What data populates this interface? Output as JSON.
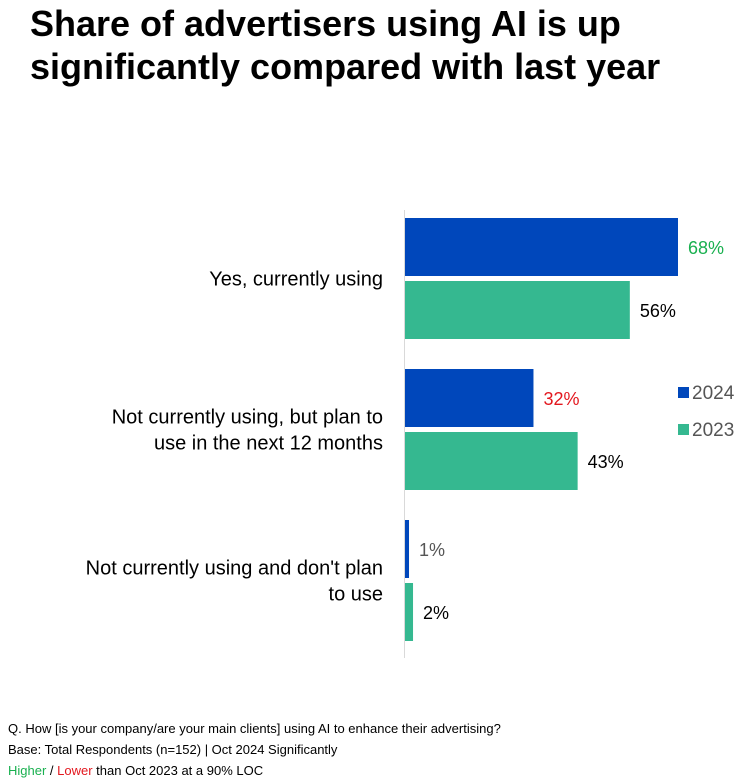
{
  "title_lines": [
    "Share of advertisers using AI is up",
    "significantly compared with last year"
  ],
  "chart_data": {
    "type": "bar",
    "orientation": "horizontal",
    "categories": [
      [
        "Yes, currently using"
      ],
      [
        "Not currently using, but plan to",
        "use in the next 12 months"
      ],
      [
        "Not currently using and don't plan",
        "to use"
      ]
    ],
    "series": [
      {
        "name": "2024",
        "values": [
          68,
          32,
          1
        ],
        "color": "#0047bb",
        "labels": [
          "68%",
          "32%",
          "1%"
        ],
        "label_colors": [
          "#19b04f",
          "#e3171e",
          "#555555"
        ]
      },
      {
        "name": "2023",
        "values": [
          56,
          43,
          2
        ],
        "color": "#35b890",
        "labels": [
          "56%",
          "43%",
          "2%"
        ],
        "label_colors": [
          "#000000",
          "#000000",
          "#000000"
        ]
      }
    ],
    "xlim": [
      0,
      68
    ],
    "grid": false,
    "legend": "right"
  },
  "footnote": {
    "line1": "Q. How [is your company/are your main clients] using AI to enhance their advertising?",
    "line2": "Base: Total Respondents (n=152) | Oct 2024 Significantly",
    "higher": "Higher",
    "sep": " / ",
    "lower": "Lower",
    "tail": " than Oct 2023 at a 90% LOC"
  }
}
